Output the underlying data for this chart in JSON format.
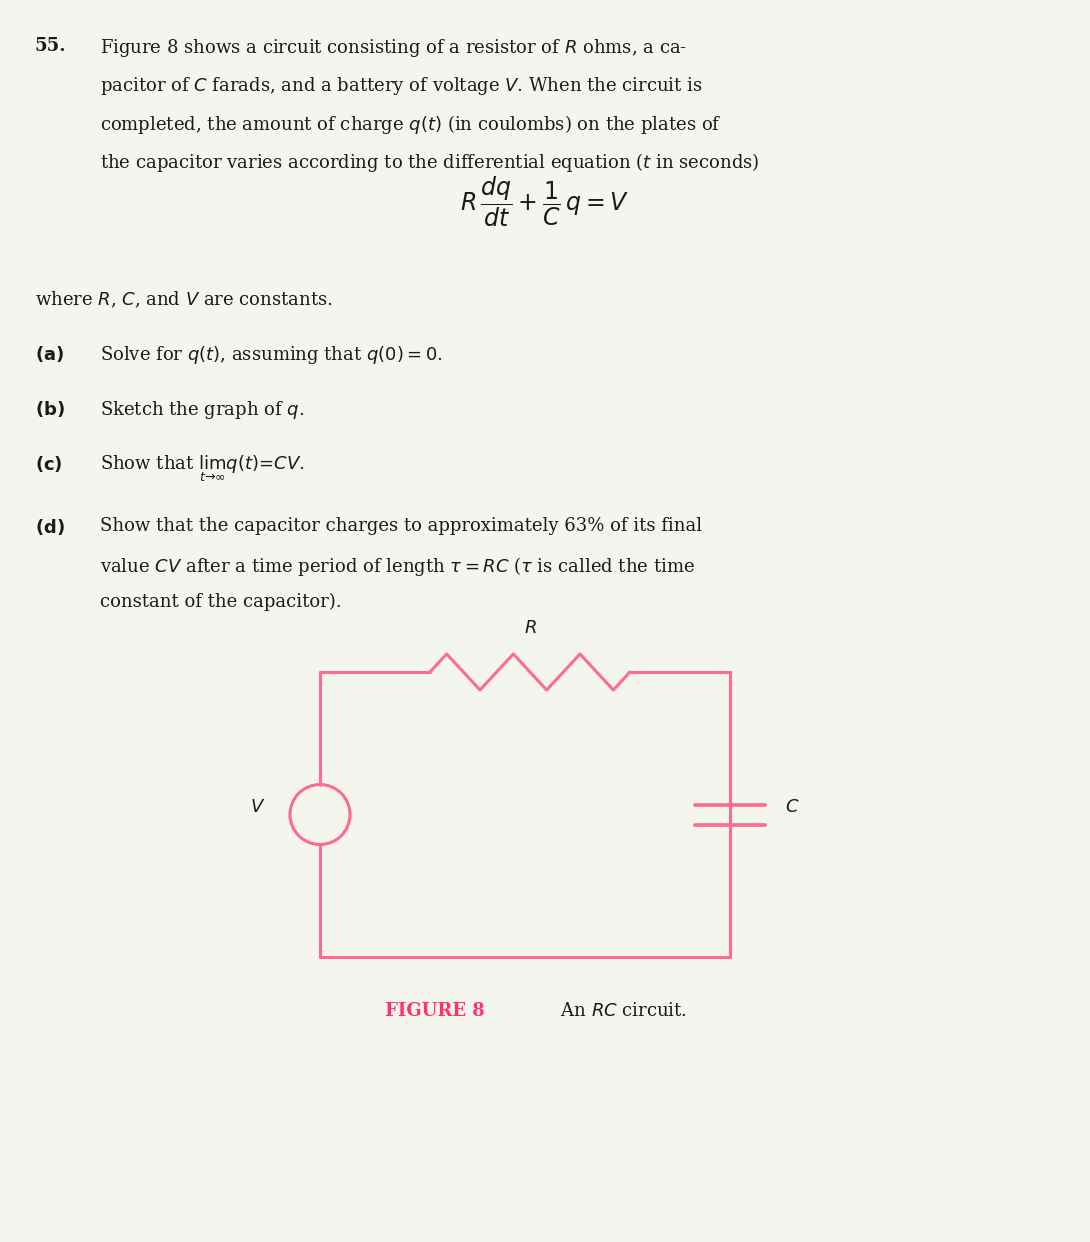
{
  "bg_color": "#f5f5f0",
  "text_color": "#1a1a1a",
  "circuit_color": "#ff6b8a",
  "figure_caption_color": "#ff3366",
  "title_number": "55.",
  "paragraph1": "Figure 8 shows a circuit consisting of a resistor of $R$ ohms, a ca-\npacitor of $C$ farads, and a battery of voltage $V$. When the circuit is\ncompleted, the amount of charge $q(t)$ (in coulombs) on the plates of\nthe capacitor varies according to the differential equation ($t$ in seconds)",
  "equation": "$R\\dfrac{dq}{dt} + \\dfrac{1}{C}q = V$",
  "where_line": "where $R$, $C$, and $V$ are constants.",
  "part_a": "(a)  Solve for $q(t)$, assuming that $q(0) = 0$.",
  "part_b": "(b)  Sketch the graph of $q$.",
  "part_c": "(c)  Show that $\\lim_{t\\to\\infty} q(t) = CV$.",
  "part_d": "(d)  Show that the capacitor charges to approximately 63% of its final\nvalue $CV$ after a time period of length $\\tau = RC$ ($\\tau$ is called the time\nconstant of the capacitor).",
  "fig_caption": "FIGURE 8",
  "fig_caption2": " An $RC$ circuit.",
  "circuit_label_R": "$R$",
  "circuit_label_V": "$V$",
  "circuit_label_C": "$C$"
}
